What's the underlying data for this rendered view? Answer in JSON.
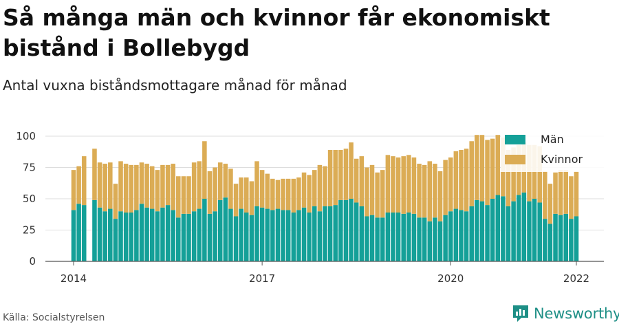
{
  "header": {
    "title": "Så många män och kvinnor får ekonomiskt bistånd i Bollebygd",
    "subtitle": "Antal vuxna biståndsmottagare månad för månad"
  },
  "footer": {
    "source": "Källa: Socialstyrelsen",
    "brand": "Newsworthy"
  },
  "colors": {
    "men": "#14a098",
    "women": "#dbac55",
    "grid": "#dddddd",
    "axis": "#555555"
  },
  "chart_data": {
    "type": "bar",
    "stacked": true,
    "title": "",
    "xlabel": "",
    "ylabel": "",
    "ylim": [
      0,
      100
    ],
    "yticks": [
      0,
      25,
      50,
      75,
      100
    ],
    "x_tick_labels": [
      "2014",
      "2017",
      "2020",
      "2022"
    ],
    "x_tick_dates": [
      "2014-01",
      "2017-01",
      "2020-01",
      "2022-01"
    ],
    "grid": true,
    "legend_position": "top-right",
    "x_start": "2014-01",
    "x_end": "2022-01",
    "categories": [
      "2014-01",
      "2014-02",
      "2014-03",
      "2014-04",
      "2014-05",
      "2014-06",
      "2014-07",
      "2014-08",
      "2014-09",
      "2014-10",
      "2014-11",
      "2014-12",
      "2015-01",
      "2015-02",
      "2015-03",
      "2015-04",
      "2015-05",
      "2015-06",
      "2015-07",
      "2015-08",
      "2015-09",
      "2015-10",
      "2015-11",
      "2015-12",
      "2016-01",
      "2016-02",
      "2016-03",
      "2016-04",
      "2016-05",
      "2016-06",
      "2016-07",
      "2016-08",
      "2016-09",
      "2016-10",
      "2016-11",
      "2016-12",
      "2017-01",
      "2017-02",
      "2017-03",
      "2017-04",
      "2017-05",
      "2017-06",
      "2017-07",
      "2017-08",
      "2017-09",
      "2017-10",
      "2017-11",
      "2017-12",
      "2018-01",
      "2018-02",
      "2018-03",
      "2018-04",
      "2018-05",
      "2018-06",
      "2018-07",
      "2018-08",
      "2018-09",
      "2018-10",
      "2018-11",
      "2018-12",
      "2019-01",
      "2019-02",
      "2019-03",
      "2019-04",
      "2019-05",
      "2019-06",
      "2019-07",
      "2019-08",
      "2019-09",
      "2019-10",
      "2019-11",
      "2019-12",
      "2020-01",
      "2020-02",
      "2020-03",
      "2020-04",
      "2020-05",
      "2020-06",
      "2020-07",
      "2020-08",
      "2020-09",
      "2020-10",
      "2020-11",
      "2020-12",
      "2021-01",
      "2021-02",
      "2021-03",
      "2021-04",
      "2021-05",
      "2021-06",
      "2021-07",
      "2021-08",
      "2021-09",
      "2021-10",
      "2021-11",
      "2021-12",
      "2022-01"
    ],
    "series": [
      {
        "name": "Män",
        "values": [
          41,
          46,
          45,
          null,
          49,
          43,
          40,
          42,
          34,
          40,
          39,
          39,
          41,
          46,
          43,
          42,
          40,
          43,
          45,
          41,
          35,
          38,
          38,
          40,
          42,
          50,
          38,
          40,
          49,
          51,
          42,
          36,
          42,
          39,
          37,
          44,
          43,
          42,
          41,
          42,
          41,
          41,
          39,
          41,
          43,
          39,
          44,
          40,
          44,
          44,
          45,
          49,
          49,
          50,
          47,
          44,
          36,
          37,
          35,
          35,
          39,
          39,
          39,
          38,
          39,
          38,
          35,
          35,
          32,
          35,
          32,
          37,
          40,
          42,
          41,
          40,
          44,
          49,
          48,
          45,
          50,
          53,
          52,
          44,
          48,
          53,
          55,
          48,
          50,
          47,
          34,
          30,
          38,
          37,
          38,
          34,
          36
        ]
      },
      {
        "name": "Kvinnor",
        "values": [
          32,
          30,
          39,
          null,
          41,
          36,
          38,
          37,
          28,
          40,
          39,
          38,
          36,
          33,
          35,
          34,
          33,
          34,
          32,
          37,
          33,
          30,
          30,
          39,
          38,
          46,
          34,
          35,
          30,
          27,
          32,
          26,
          25,
          28,
          27,
          36,
          30,
          28,
          25,
          23,
          25,
          25,
          27,
          26,
          28,
          30,
          29,
          37,
          32,
          45,
          44,
          40,
          41,
          45,
          35,
          40,
          39,
          40,
          36,
          38,
          46,
          45,
          44,
          46,
          46,
          45,
          43,
          42,
          48,
          43,
          40,
          44,
          43,
          46,
          48,
          50,
          52,
          52,
          53,
          52,
          48,
          48,
          47,
          45,
          43,
          40,
          40,
          45,
          43,
          45,
          38,
          32,
          33,
          36,
          35,
          34,
          36
        ]
      }
    ]
  }
}
